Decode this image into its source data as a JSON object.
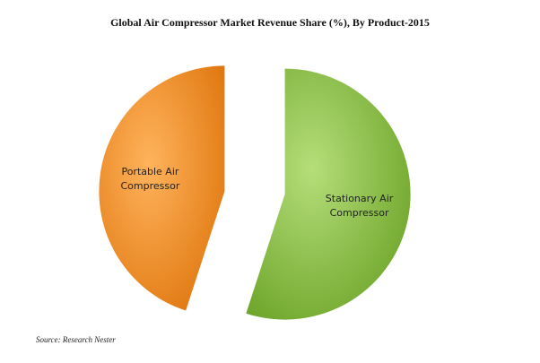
{
  "chart_data": {
    "type": "pie",
    "title": "Global Air Compressor Market Revenue Share (%), By Product-2015",
    "categories": [
      "Stationary Air Compressor",
      "Portable Air Compressor"
    ],
    "values": [
      55,
      45
    ],
    "colors": [
      "#8dc63f",
      "#f7941d"
    ],
    "source": "Source: Research Nester"
  }
}
